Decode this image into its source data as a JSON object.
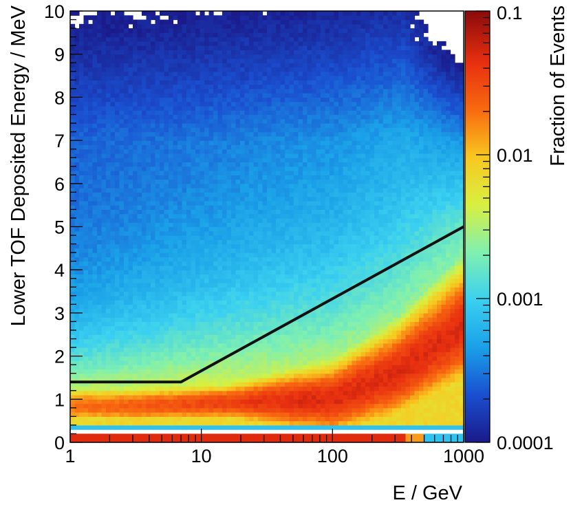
{
  "chart_data": {
    "type": "heatmap",
    "title": "",
    "xlabel": "E / GeV",
    "ylabel": "Lower TOF Deposited Energy / MeV",
    "zlabel": "Fraction of Events",
    "x_scale": "log",
    "xlim": [
      1,
      1000
    ],
    "ylim": [
      0,
      10
    ],
    "z_scale": "log",
    "zlim": [
      0.0001,
      0.1
    ],
    "x_ticks": [
      "1",
      "10",
      "100",
      "1000"
    ],
    "y_ticks": [
      "0",
      "1",
      "2",
      "3",
      "4",
      "5",
      "6",
      "7",
      "8",
      "9",
      "10"
    ],
    "z_ticks": [
      "0.0001",
      "0.001",
      "0.01",
      "0.1"
    ],
    "colormap": [
      "#1a1a8a",
      "#1a4fd0",
      "#1aa0e8",
      "#3ad0f0",
      "#80f0b0",
      "#d8f040",
      "#f8c820",
      "#f86a10",
      "#e83010",
      "#8a0a0a"
    ],
    "cut_line": {
      "x": [
        1,
        7,
        1000
      ],
      "y": [
        1.4,
        1.4,
        5.0
      ]
    },
    "band_ridge": {
      "x": [
        1,
        3,
        10,
        30,
        100,
        300,
        1000
      ],
      "y": [
        0.85,
        0.85,
        0.9,
        0.95,
        1.0,
        1.6,
        2.7
      ]
    }
  }
}
